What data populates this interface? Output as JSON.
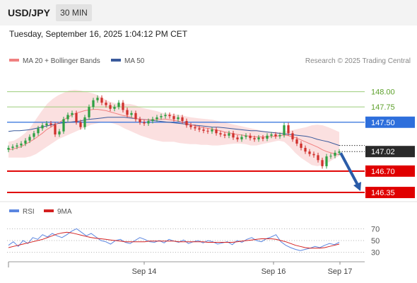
{
  "header": {
    "symbol": "USD/JPY",
    "timeframe": "30 MIN",
    "datetime": "Tuesday, September 16, 2025 1:04:12 PM CET"
  },
  "legend": {
    "ma20_label": "MA 20 + Bollinger Bands",
    "ma50_label": "MA 50",
    "rsi_label": "RSI",
    "ma9_label": "9MA",
    "credit": "Research © 2025 Trading Central"
  },
  "colors": {
    "resistance": "#9ccc7a",
    "resistance_text": "#5ea12c",
    "pivot": "#2e6fdc",
    "support": "#e00000",
    "ma20": "#f08080",
    "ma50": "#3a5a9c",
    "bollinger_fill": "#fbe0e0",
    "candle_up": "#2ea043",
    "candle_down": "#d0312d",
    "arrow": "#2b5ca8",
    "rsi": "#5b86e0",
    "rsi_ma": "#d42020"
  },
  "chart_data": [
    {
      "type": "candlestick",
      "ylim": [
        146.2,
        148.25
      ],
      "x_ticks": [
        "Sep 14",
        "Sep 16",
        "Sep 17"
      ],
      "levels": {
        "resistances": [
          148.0,
          147.75
        ],
        "pivot": 147.5,
        "current": 147.02,
        "supports": [
          146.7,
          146.35
        ]
      },
      "level_labels": {
        "r2": "148.00",
        "r1": "147.75",
        "pivot": "147.50",
        "current": "147.02",
        "s1": "146.70",
        "s2": "146.35"
      },
      "forecast": {
        "from": 147.02,
        "to": 146.35,
        "direction": "down"
      },
      "price_close": [
        147.08,
        147.1,
        147.12,
        147.15,
        147.2,
        147.26,
        147.32,
        147.4,
        147.45,
        147.48,
        147.46,
        147.3,
        147.35,
        147.55,
        147.62,
        147.65,
        147.5,
        147.42,
        147.58,
        147.75,
        147.86,
        147.9,
        147.82,
        147.78,
        147.72,
        147.75,
        147.82,
        147.7,
        147.62,
        147.65,
        147.55,
        147.5,
        147.48,
        147.52,
        147.55,
        147.58,
        147.6,
        147.62,
        147.6,
        147.55,
        147.58,
        147.52,
        147.45,
        147.42,
        147.4,
        147.38,
        147.36,
        147.35,
        147.38,
        147.32,
        147.3,
        147.28,
        147.32,
        147.25,
        147.22,
        147.26,
        147.28,
        147.24,
        147.22,
        147.25,
        147.23,
        147.28,
        147.3,
        147.27,
        147.29,
        147.45,
        147.32,
        147.22,
        147.15,
        147.08,
        147.02,
        146.98,
        146.96,
        146.88,
        146.78,
        146.94,
        146.95,
        147.0,
        147.02
      ],
      "ma20": [
        147.05,
        147.06,
        147.08,
        147.1,
        147.14,
        147.18,
        147.22,
        147.27,
        147.32,
        147.38,
        147.42,
        147.46,
        147.5,
        147.54,
        147.58,
        147.62,
        147.65,
        147.67,
        147.69,
        147.7,
        147.71,
        147.71,
        147.7,
        147.69,
        147.67,
        147.65,
        147.63,
        147.61,
        147.6,
        147.58,
        147.56,
        147.55,
        147.54,
        147.54,
        147.54,
        147.55,
        147.55,
        147.55,
        147.54,
        147.53,
        147.52,
        147.5,
        147.48,
        147.46,
        147.44,
        147.42,
        147.41,
        147.4,
        147.39,
        147.37,
        147.36,
        147.34,
        147.33,
        147.31,
        147.3,
        147.29,
        147.28,
        147.27,
        147.26,
        147.26,
        147.26,
        147.26,
        147.27,
        147.27,
        147.28,
        147.29,
        147.28,
        147.26,
        147.24,
        147.21,
        147.18,
        147.15,
        147.12,
        147.09,
        147.05,
        147.02,
        147.0,
        146.98,
        146.97
      ],
      "bollinger_upper": [
        147.18,
        147.2,
        147.25,
        147.32,
        147.42,
        147.55,
        147.68,
        147.8,
        147.88,
        147.94,
        147.98,
        148.02,
        148.03,
        148.02,
        148.0,
        147.98,
        147.95,
        147.9,
        147.85,
        147.82,
        147.8,
        147.8,
        147.8,
        147.78,
        147.74,
        147.72,
        147.7,
        147.68,
        147.65,
        147.64,
        147.63,
        147.62,
        147.6,
        147.58,
        147.57,
        147.56,
        147.55,
        147.54,
        147.52,
        147.5,
        147.48,
        147.46,
        147.44,
        147.42,
        147.4,
        147.38,
        147.36,
        147.35,
        147.34,
        147.34,
        147.35,
        147.36,
        147.38,
        147.4,
        147.42,
        147.45,
        147.46,
        147.45,
        147.42,
        147.38,
        147.34
      ],
      "bollinger_lower": [
        146.92,
        146.92,
        146.92,
        146.92,
        146.94,
        146.98,
        147.04,
        147.1,
        147.16,
        147.22,
        147.26,
        147.3,
        147.34,
        147.38,
        147.42,
        147.46,
        147.48,
        147.5,
        147.5,
        147.48,
        147.45,
        147.4,
        147.36,
        147.32,
        147.28,
        147.25,
        147.22,
        147.2,
        147.18,
        147.18,
        147.18,
        147.16,
        147.15,
        147.14,
        147.14,
        147.13,
        147.13,
        147.12,
        147.12,
        147.13,
        147.14,
        147.15,
        147.15,
        147.14,
        147.12,
        147.12,
        147.14,
        147.16,
        147.18,
        147.2,
        147.18,
        147.1,
        147.0,
        146.92,
        146.86,
        146.8,
        146.78,
        146.8,
        146.84,
        146.9,
        146.95
      ],
      "ma50": [
        147.35,
        147.36,
        147.36,
        147.37,
        147.38,
        147.4,
        147.42,
        147.44,
        147.46,
        147.48,
        147.49,
        147.5,
        147.51,
        147.52,
        147.54,
        147.55,
        147.56,
        147.57,
        147.58,
        147.58,
        147.58,
        147.58,
        147.57,
        147.56,
        147.55,
        147.54,
        147.53,
        147.52,
        147.51,
        147.5,
        147.49,
        147.48,
        147.47,
        147.46,
        147.45,
        147.44,
        147.43,
        147.42,
        147.42,
        147.41,
        147.4,
        147.39,
        147.38,
        147.37,
        147.36,
        147.36,
        147.35,
        147.34,
        147.33,
        147.32,
        147.31,
        147.3,
        147.29,
        147.28,
        147.27,
        147.25,
        147.22,
        147.2,
        147.18,
        147.15,
        147.12
      ]
    },
    {
      "type": "line",
      "title": "RSI",
      "ylim": [
        20,
        80
      ],
      "y_ticks": [
        70,
        50,
        30
      ],
      "series": [
        {
          "name": "RSI",
          "values": [
            42,
            48,
            40,
            50,
            45,
            55,
            52,
            60,
            56,
            62,
            58,
            55,
            60,
            66,
            70,
            64,
            58,
            62,
            56,
            50,
            48,
            44,
            50,
            52,
            47,
            45,
            50,
            55,
            52,
            48,
            47,
            50,
            46,
            52,
            49,
            47,
            51,
            45,
            48,
            50,
            46,
            50,
            48,
            44,
            46,
            48,
            43,
            50,
            47,
            52,
            55,
            50,
            48,
            53,
            56,
            60,
            48,
            42,
            38,
            35,
            33,
            35,
            37,
            40,
            38,
            42,
            45,
            43,
            47
          ]
        },
        {
          "name": "9MA",
          "values": [
            38,
            40,
            42,
            44,
            46,
            48,
            50,
            52,
            55,
            58,
            61,
            63,
            64,
            63,
            61,
            59,
            57,
            55,
            54,
            53,
            52,
            51,
            50,
            49,
            48,
            48,
            48,
            48,
            48,
            49,
            49,
            49,
            49,
            49,
            49,
            48,
            48,
            48,
            48,
            48,
            48,
            47,
            47,
            47,
            47,
            47,
            47,
            48,
            49,
            50,
            51,
            52,
            53,
            53,
            53,
            52,
            50,
            48,
            45,
            42,
            40,
            38,
            37,
            37,
            37,
            38,
            40,
            42,
            44
          ]
        }
      ]
    }
  ]
}
